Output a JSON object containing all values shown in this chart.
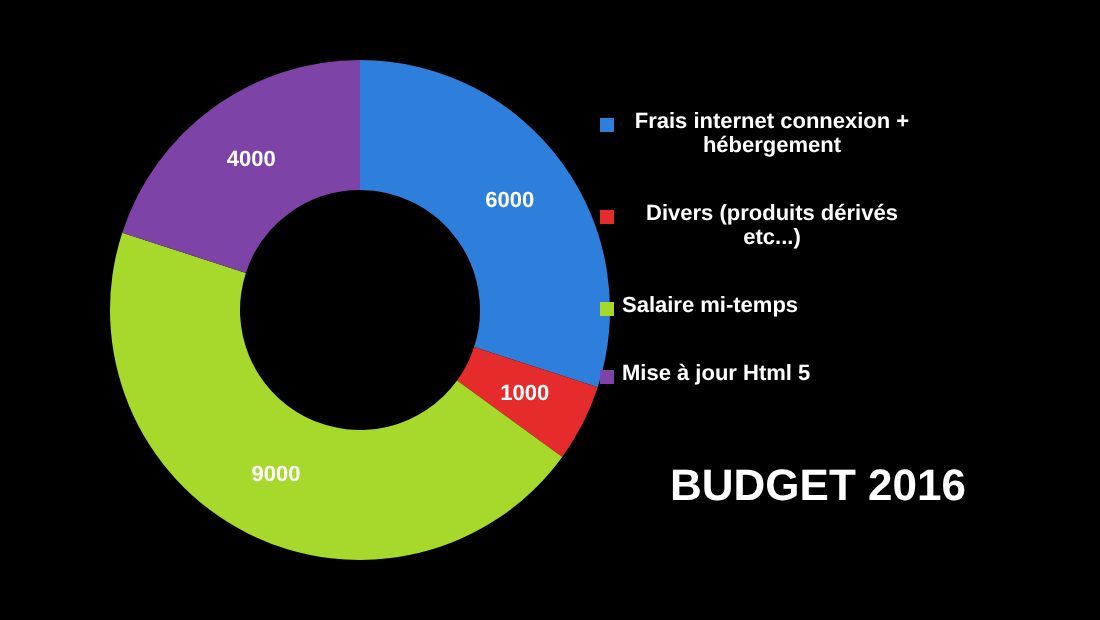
{
  "chart_data": {
    "type": "donut",
    "title": "BUDGET 2016",
    "categories": [
      "Frais internet connexion + hébergement",
      "Divers (produits dérivés etc...)",
      "Salaire mi-temps",
      "Mise à jour Html 5"
    ],
    "values": [
      6000,
      1000,
      9000,
      4000
    ],
    "colors": [
      "#2e7fdc",
      "#e52b2b",
      "#a6d92c",
      "#7d43a6"
    ],
    "data_labels": true,
    "legend": "right"
  }
}
